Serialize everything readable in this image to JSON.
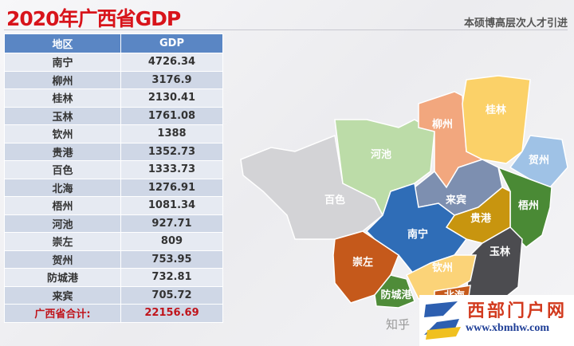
{
  "header": {
    "title": "2020年广西省GDP",
    "subtitle": "本硕博高层次人才引进"
  },
  "table": {
    "columns": [
      "地区",
      "GDP"
    ],
    "rows": [
      [
        "南宁",
        "4726.34"
      ],
      [
        "柳州",
        "3176.9"
      ],
      [
        "桂林",
        "2130.41"
      ],
      [
        "玉林",
        "1761.08"
      ],
      [
        "钦州",
        "1388"
      ],
      [
        "贵港",
        "1352.73"
      ],
      [
        "百色",
        "1333.73"
      ],
      [
        "北海",
        "1276.91"
      ],
      [
        "梧州",
        "1081.34"
      ],
      [
        "河池",
        "927.71"
      ],
      [
        "崇左",
        "809"
      ],
      [
        "贺州",
        "753.95"
      ],
      [
        "防城港",
        "732.81"
      ],
      [
        "来宾",
        "705.72"
      ]
    ],
    "total": [
      "广西省合计:",
      "22156.69"
    ]
  },
  "map": {
    "regions": [
      {
        "name": "百色",
        "color": "#d3d3d6"
      },
      {
        "name": "河池",
        "color": "#bcdca8"
      },
      {
        "name": "柳州",
        "color": "#f2a77e"
      },
      {
        "name": "桂林",
        "color": "#fbd168"
      },
      {
        "name": "贺州",
        "color": "#9fc2e6"
      },
      {
        "name": "梧州",
        "color": "#4a8a35"
      },
      {
        "name": "来宾",
        "color": "#7d8fb0"
      },
      {
        "name": "贵港",
        "color": "#c8950f"
      },
      {
        "name": "玉林",
        "color": "#4c4c50"
      },
      {
        "name": "南宁",
        "color": "#2f6db7"
      },
      {
        "name": "崇左",
        "color": "#c5591b"
      },
      {
        "name": "防城港",
        "color": "#4f8c39"
      },
      {
        "name": "钦州",
        "color": "#fbd378"
      },
      {
        "name": "北海",
        "color": "#c5591b"
      }
    ]
  },
  "watermark": {
    "zhihu": "知乎",
    "site_name": "西部门户网",
    "url": "www.xbmhw.com"
  }
}
